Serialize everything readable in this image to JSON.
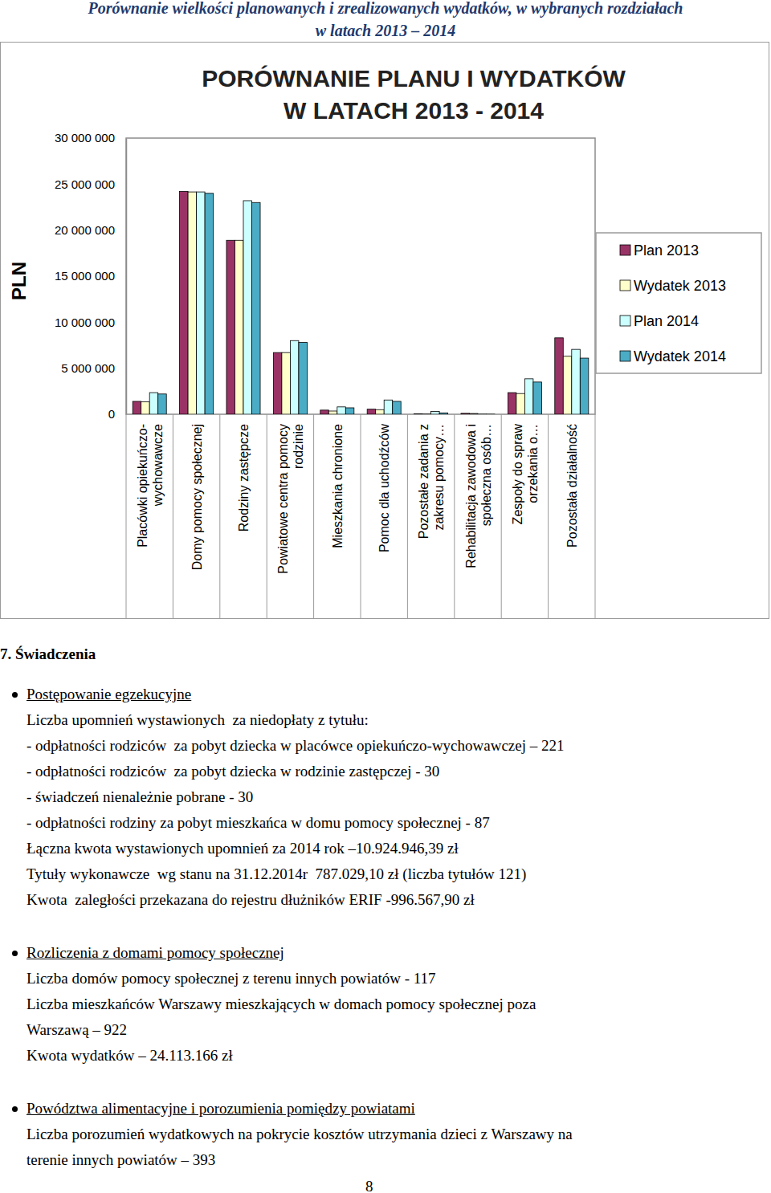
{
  "header": {
    "lines": [
      "Porównanie wielkości planowanych i zrealizowanych wydatków, w wybranych rozdziałach",
      "w latach 2013 – 2014"
    ]
  },
  "chart_data": {
    "type": "bar",
    "title": "PORÓWNANIE PLANU I WYDATKÓW\nW LATACH 2013 - 2014",
    "y_label": "PLN",
    "categories": [
      "Placówki opiekuńczo-\nwychowawcze",
      "Domy pomocy społecznej",
      "Rodziny zastępcze",
      "Powiatowe centra pomocy\nrodzinie",
      "Mieszkania chronione",
      "Pomoc dla uchodźców",
      "Pozostałe zadania z\nzakresu pomocy…",
      "Rehabilitacja zawodowa i\nspołeczna osób…",
      "Zespoły do spraw\norzekania o…",
      "Pozostała działalność"
    ],
    "series": [
      {
        "name": "Plan 2013",
        "color": "#993366",
        "values": [
          1400000,
          24200000,
          18900000,
          6700000,
          450000,
          550000,
          50000,
          100000,
          2350000,
          8300000
        ]
      },
      {
        "name": "Wydatek 2013",
        "color": "#FFFFCC",
        "values": [
          1350000,
          24150000,
          18900000,
          6700000,
          350000,
          500000,
          30000,
          80000,
          2250000,
          6300000
        ]
      },
      {
        "name": "Plan 2014",
        "color": "#CCFFFF",
        "values": [
          2350000,
          24150000,
          23200000,
          8000000,
          800000,
          1550000,
          300000,
          20000,
          3850000,
          7050000
        ]
      },
      {
        "name": "Wydatek 2014",
        "color": "#4BACC6",
        "values": [
          2200000,
          24000000,
          23000000,
          7800000,
          700000,
          1400000,
          150000,
          10000,
          3500000,
          6100000
        ]
      }
    ],
    "ylim": [
      0,
      30000000
    ],
    "yticks": [
      0,
      {
        "value": 5000000,
        "label": "5 000 000"
      },
      {
        "value": 10000000,
        "label": "10 000 000"
      },
      {
        "value": 15000000,
        "label": "15 000 000"
      },
      {
        "value": 20000000,
        "label": "20 000 000"
      },
      {
        "value": 25000000,
        "label": "25 000 000"
      },
      {
        "value": 30000000,
        "label": "30 000 000"
      }
    ],
    "grid": false,
    "legend": "right"
  },
  "document": {
    "heading": "7. Świadczenia",
    "sections": [
      {
        "title": "Postępowanie egzekucyjne",
        "lines": [
          "Liczba upomnień wystawionych  za niedopłaty z tytułu:",
          "- odpłatności rodziców  za pobyt dziecka w placówce opiekuńczo-wychowawczej – 221",
          "- odpłatności rodziców  za pobyt dziecka w rodzinie zastępczej - 30",
          "- świadczeń nienależnie pobrane - 30",
          "- odpłatności rodziny za pobyt mieszkańca w domu pomocy społecznej - 87",
          "Łączna kwota wystawionych upomnień za 2014 rok –10.924.946,39 zł",
          "Tytuły wykonawcze  wg stanu na 31.12.2014r  787.029,10 zł (liczba tytułów 121)",
          "Kwota  zaległości przekazana do rejestru dłużników ERIF -996.567,90 zł"
        ]
      },
      {
        "title": "Rozliczenia z domami pomocy społecznej",
        "lines": [
          "Liczba domów pomocy społecznej z terenu innych powiatów - 117",
          "Liczba mieszkańców Warszawy mieszkających w domach pomocy społecznej poza",
          "Warszawą – 922",
          "Kwota wydatków – 24.113.166 zł"
        ]
      },
      {
        "title": "Powództwa alimentacyjne i porozumienia pomiędzy powiatami",
        "lines": [
          "Liczba porozumień wydatkowych na pokrycie kosztów utrzymania dzieci z Warszawy na",
          "terenie innych powiatów – 393"
        ]
      }
    ],
    "page_number": "8"
  }
}
